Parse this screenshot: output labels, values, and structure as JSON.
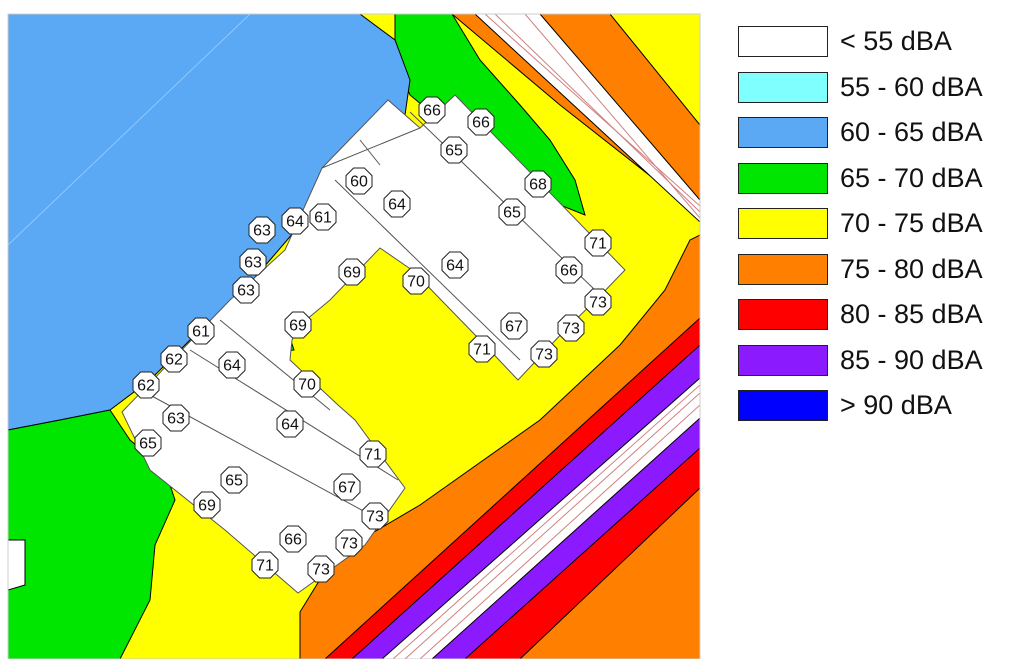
{
  "legend": {
    "items": [
      {
        "label": "< 55 dBA",
        "color": "#ffffff"
      },
      {
        "label": "55 - 60 dBA",
        "color": "#80ffff"
      },
      {
        "label": "60 - 65 dBA",
        "color": "#5ba8f5"
      },
      {
        "label": "65 - 70 dBA",
        "color": "#00e600"
      },
      {
        "label": "70 - 75 dBA",
        "color": "#ffff00"
      },
      {
        "label": "75 - 80 dBA",
        "color": "#ff8000"
      },
      {
        "label": "80 - 85 dBA",
        "color": "#ff0000"
      },
      {
        "label": "85 - 90 dBA",
        "color": "#8c1aff"
      },
      {
        "label": "> 90 dBA",
        "color": "#0000ff"
      }
    ]
  },
  "receivers": [
    "66",
    "66",
    "65",
    "68",
    "60",
    "64",
    "65",
    "61",
    "64",
    "63",
    "71",
    "63",
    "69",
    "70",
    "64",
    "66",
    "63",
    "73",
    "67",
    "73",
    "61",
    "69",
    "71",
    "73",
    "62",
    "64",
    "70",
    "62",
    "63",
    "64",
    "65",
    "71",
    "65",
    "67",
    "69",
    "73",
    "66",
    "73",
    "71",
    "73"
  ]
}
